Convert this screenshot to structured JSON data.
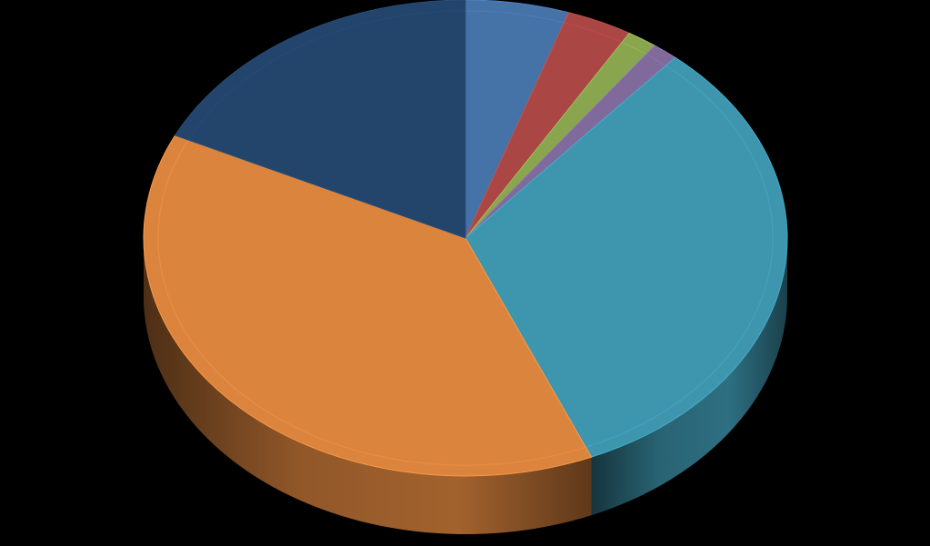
{
  "chart_data": {
    "type": "pie",
    "variant": "3d",
    "title": "",
    "legend": "none",
    "data_labels": "none",
    "slices": [
      {
        "value": 5.2,
        "color": "#4572a7"
      },
      {
        "value": 3.3,
        "color": "#aa4643"
      },
      {
        "value": 1.5,
        "color": "#89a54e"
      },
      {
        "value": 1.3,
        "color": "#80699b"
      },
      {
        "value": 32.3,
        "color": "#3d96ae"
      },
      {
        "value": 38.5,
        "color": "#db843d"
      },
      {
        "value": 17.9,
        "color": "#23446b"
      }
    ]
  }
}
